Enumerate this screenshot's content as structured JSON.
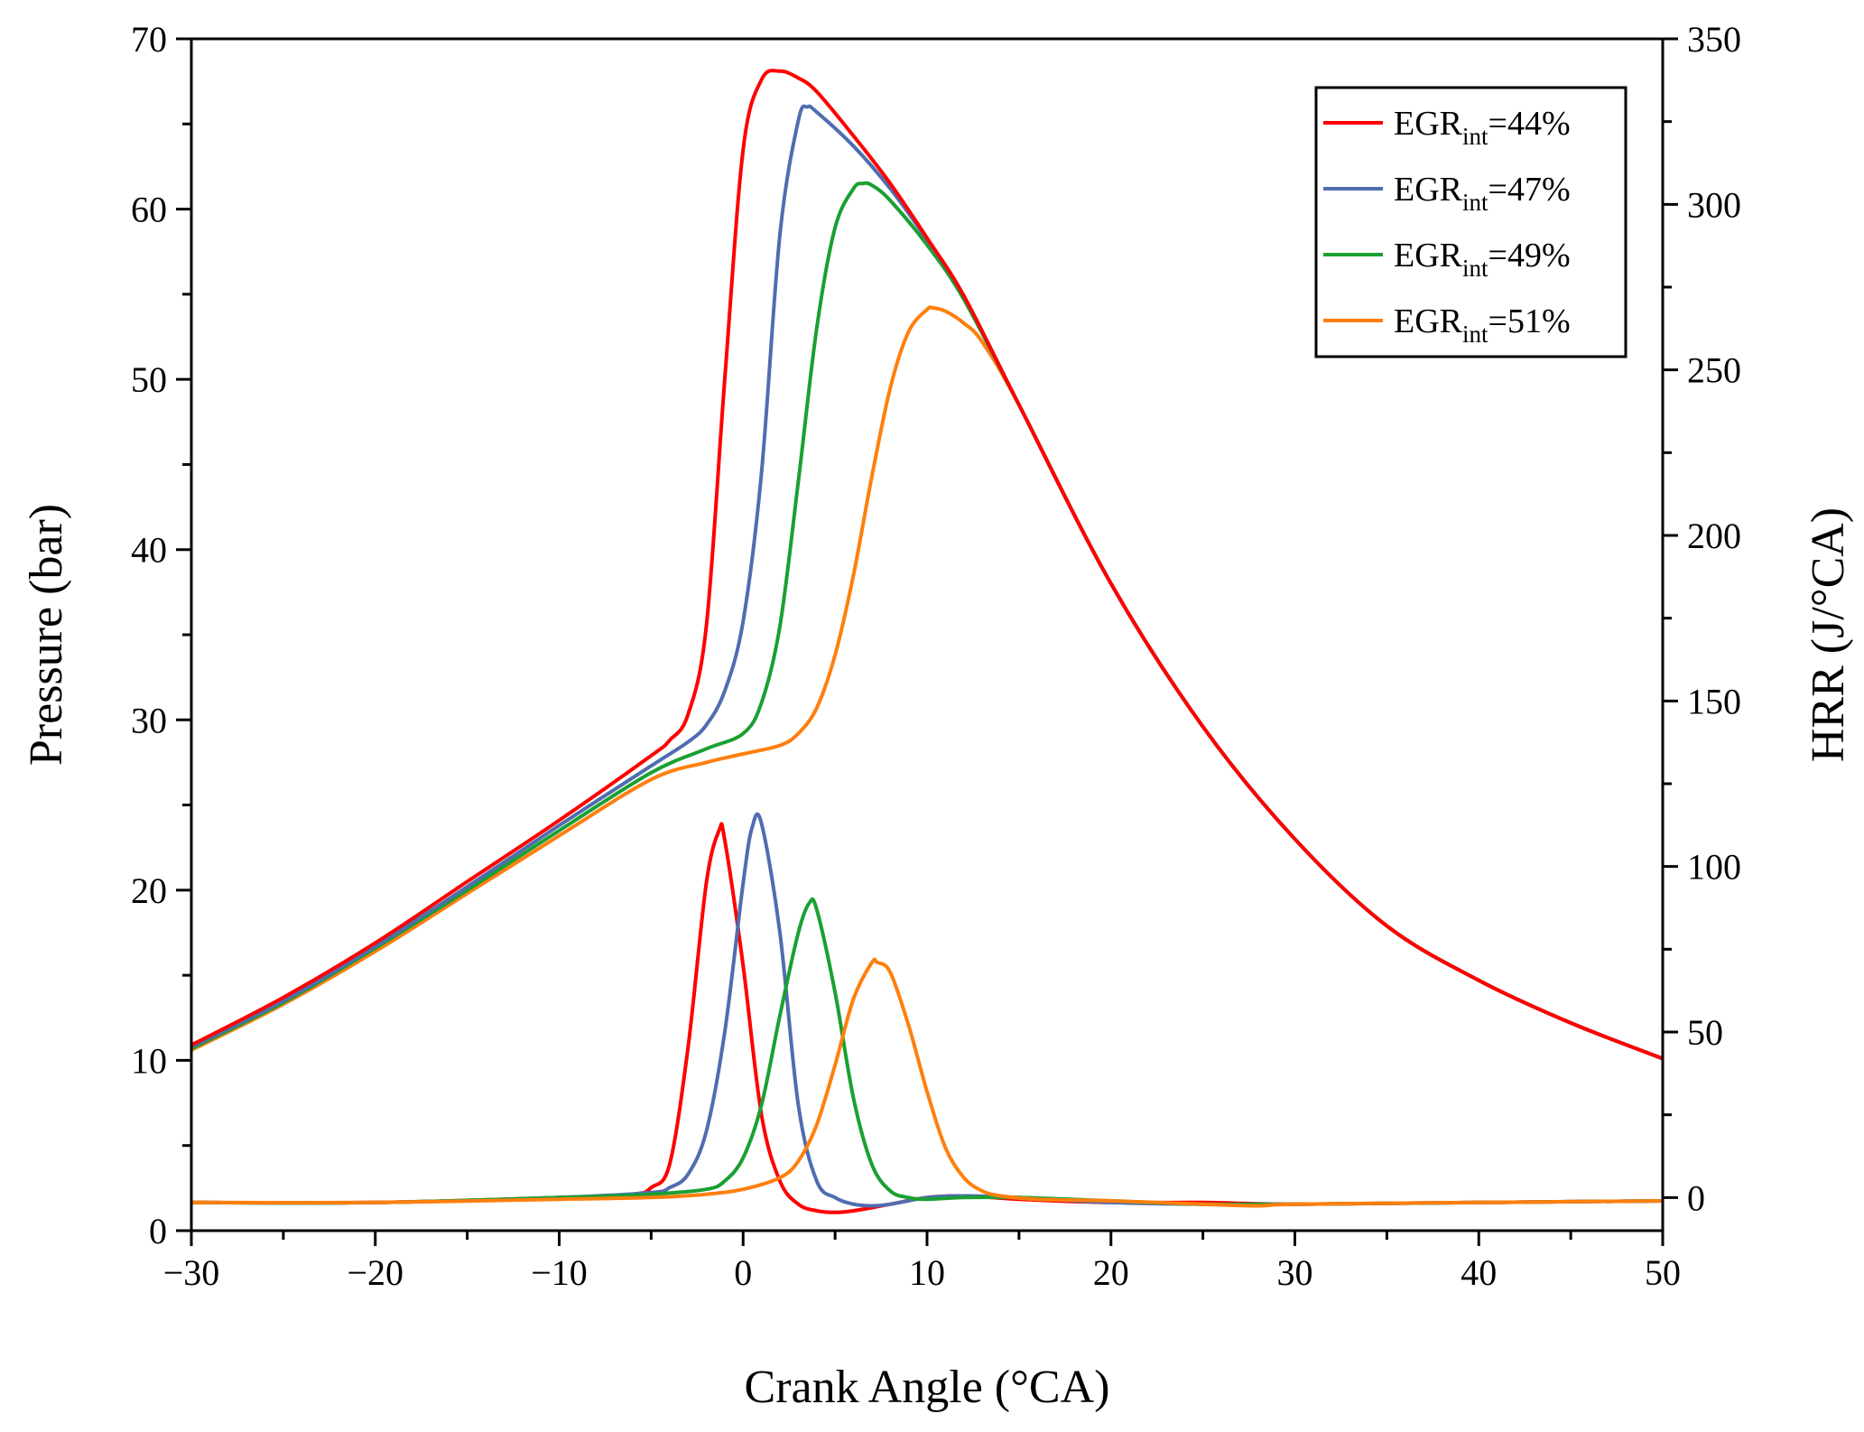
{
  "chart_data": {
    "type": "line",
    "title": "",
    "xlabel": "Crank Angle (°CA)",
    "ylabel_left": "Pressure (bar)",
    "ylabel_right": "HRR (J/°CA)",
    "xlim": [
      -30,
      50
    ],
    "ylim_left": [
      0,
      70
    ],
    "ylim_right": [
      -10,
      350
    ],
    "x_ticks": [
      -30,
      -20,
      -10,
      0,
      10,
      20,
      30,
      40,
      50
    ],
    "x_tick_labels": [
      "−30",
      "−20",
      "−10",
      "0",
      "10",
      "20",
      "30",
      "40",
      "50"
    ],
    "y_left_ticks": [
      0,
      10,
      20,
      30,
      40,
      50,
      60,
      70
    ],
    "y_left_tick_labels": [
      "0",
      "10",
      "20",
      "30",
      "40",
      "50",
      "60",
      "70"
    ],
    "y_right_ticks": [
      0,
      50,
      100,
      150,
      200,
      250,
      300,
      350
    ],
    "y_right_tick_labels": [
      "0",
      "50",
      "100",
      "150",
      "200",
      "250",
      "300",
      "350"
    ],
    "grid": false,
    "legend_position": "top-right",
    "legend": [
      {
        "prefix": "EGR",
        "sub": "int",
        "suffix": "=44%",
        "color": "#ff0000"
      },
      {
        "prefix": "EGR",
        "sub": "int",
        "suffix": "=47%",
        "color": "#4f6db0"
      },
      {
        "prefix": "EGR",
        "sub": "int",
        "suffix": "=49%",
        "color": "#1aa032"
      },
      {
        "prefix": "EGR",
        "sub": "int",
        "suffix": "=51%",
        "color": "#ff7f0e"
      }
    ],
    "pressure_series": [
      {
        "name": "EGRint=44%",
        "color": "#ff0000",
        "x": [
          -30,
          -25,
          -20,
          -15,
          -10,
          -5,
          -4,
          -3,
          -2,
          -1,
          0,
          1,
          2,
          3,
          4,
          6,
          8,
          10,
          12,
          15,
          20,
          25,
          30,
          35,
          40,
          45,
          50
        ],
        "y": [
          10.9,
          13.7,
          16.9,
          20.5,
          24.1,
          27.9,
          28.8,
          30.3,
          35.5,
          50,
          63.5,
          67.6,
          68.1,
          67.7,
          66.9,
          64.3,
          61.5,
          58.3,
          54.9,
          48.5,
          38.0,
          29.6,
          23.0,
          17.9,
          14.7,
          12.2,
          10.1
        ]
      },
      {
        "name": "EGRint=47%",
        "color": "#4f6db0",
        "x": [
          -30,
          -25,
          -20,
          -15,
          -10,
          -5,
          -3,
          -2,
          -1,
          0,
          1,
          2,
          3,
          3.5,
          4,
          6,
          8,
          10,
          12,
          15,
          20,
          25,
          30,
          35,
          40,
          45,
          50
        ],
        "y": [
          10.8,
          13.5,
          16.7,
          20.2,
          23.8,
          27.3,
          28.7,
          29.7,
          31.7,
          35.8,
          44.5,
          58.5,
          65.2,
          66.0,
          65.7,
          63.7,
          61.2,
          58.2,
          54.9,
          48.5,
          38.0,
          29.6,
          23.0,
          17.9,
          14.7,
          12.2,
          10.1
        ]
      },
      {
        "name": "EGRint=49%",
        "color": "#1aa032",
        "x": [
          -30,
          -25,
          -20,
          -15,
          -10,
          -5,
          -2,
          0,
          1,
          2,
          3,
          4,
          5,
          6,
          6.5,
          7,
          8,
          10,
          12,
          15,
          20,
          25,
          30,
          35,
          40,
          45,
          50
        ],
        "y": [
          10.7,
          13.4,
          16.6,
          20.0,
          23.5,
          26.9,
          28.3,
          29.2,
          31.0,
          35.5,
          44.0,
          53.0,
          58.9,
          61.2,
          61.5,
          61.4,
          60.5,
          57.9,
          54.7,
          48.5,
          38.0,
          29.6,
          23.0,
          17.9,
          14.7,
          12.2,
          10.1
        ]
      },
      {
        "name": "EGRint=51%",
        "color": "#ff7f0e",
        "x": [
          -30,
          -25,
          -20,
          -15,
          -10,
          -5,
          -2,
          0,
          2,
          3,
          4,
          5,
          6,
          7,
          8,
          9,
          10,
          10.3,
          11,
          12,
          13,
          15,
          20,
          25,
          30,
          35,
          40,
          45,
          50
        ],
        "y": [
          10.6,
          13.3,
          16.4,
          19.8,
          23.2,
          26.5,
          27.5,
          28.0,
          28.5,
          29.2,
          30.7,
          33.8,
          38.5,
          44.3,
          49.5,
          52.8,
          54.1,
          54.2,
          54.0,
          53.3,
          52.2,
          48.5,
          38.0,
          29.6,
          23.0,
          17.9,
          14.7,
          12.2,
          10.1
        ]
      }
    ],
    "hrr_series": [
      {
        "name": "EGRint=44%",
        "color": "#ff0000",
        "x": [
          -30,
          -20,
          -10,
          -6,
          -5,
          -4,
          -3,
          -2,
          -1.3,
          -1,
          0,
          1,
          2,
          3,
          4,
          5,
          6,
          8,
          10,
          12,
          15,
          20,
          25,
          30,
          40,
          50
        ],
        "y": [
          -1.5,
          -1.5,
          0,
          1,
          3,
          10,
          45,
          95,
          111,
          108,
          70,
          25,
          5,
          -2,
          -4,
          -4.5,
          -4,
          -2,
          0,
          0.5,
          -0.5,
          -1.5,
          -1.5,
          -2,
          -1.5,
          -1
        ]
      },
      {
        "name": "EGRint=47%",
        "color": "#4f6db0",
        "x": [
          -30,
          -20,
          -10,
          -5,
          -4,
          -3,
          -2,
          -1,
          0,
          0.5,
          1,
          2,
          3,
          4,
          5,
          6,
          7,
          8,
          10,
          12,
          15,
          20,
          25,
          30,
          40,
          50
        ],
        "y": [
          -1.5,
          -1.5,
          0,
          1.5,
          3,
          7,
          20,
          50,
          95,
          112,
          113,
          80,
          28,
          5,
          0,
          -2,
          -2.5,
          -2,
          0,
          0.5,
          0,
          -1.5,
          -2,
          -2,
          -1.5,
          -1
        ]
      },
      {
        "name": "EGRint=49%",
        "color": "#1aa032",
        "x": [
          -30,
          -20,
          -10,
          -5,
          -2,
          -1,
          0,
          1,
          2,
          3,
          3.6,
          4,
          5,
          6,
          7,
          8,
          9,
          10,
          12,
          15,
          20,
          25,
          30,
          40,
          50
        ],
        "y": [
          -1.5,
          -1.5,
          0,
          1,
          2.5,
          5,
          12,
          28,
          55,
          80,
          89,
          87,
          62,
          30,
          10,
          2,
          0,
          -0.5,
          0,
          0,
          -1,
          -2,
          -2,
          -1.5,
          -1
        ]
      },
      {
        "name": "EGRint=51%",
        "color": "#ff7f0e",
        "x": [
          -30,
          -20,
          -10,
          -5,
          -2,
          0,
          2,
          3,
          4,
          5,
          6,
          7,
          7.3,
          8,
          9,
          10,
          11,
          12,
          13,
          14,
          16,
          20,
          25,
          28,
          30,
          40,
          50
        ],
        "y": [
          -1.5,
          -1.5,
          -0.5,
          0,
          1,
          2.5,
          6,
          11,
          22,
          40,
          60,
          71,
          71,
          68,
          52,
          32,
          15,
          6,
          2,
          0.5,
          -0.5,
          -1,
          -2,
          -2.5,
          -2,
          -1.5,
          -1
        ]
      }
    ]
  }
}
